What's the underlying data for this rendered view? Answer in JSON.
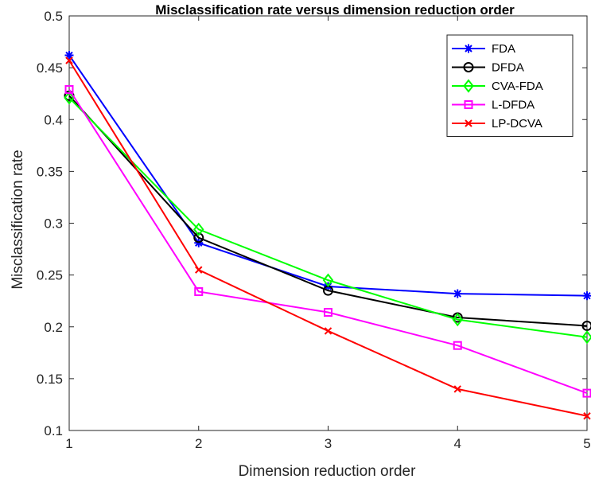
{
  "chart_data": {
    "type": "line",
    "title": "Misclassification rate versus dimension reduction order",
    "xlabel": "Dimension reduction order",
    "ylabel": "Misclassification rate",
    "x": [
      1,
      2,
      3,
      4,
      5
    ],
    "xlim": [
      1,
      5
    ],
    "ylim": [
      0.1,
      0.5
    ],
    "xticks": [
      "1",
      "2",
      "3",
      "4",
      "5"
    ],
    "yticks": [
      "0.1",
      "0.15",
      "0.2",
      "0.25",
      "0.3",
      "0.35",
      "0.4",
      "0.45",
      "0.5"
    ],
    "grid": false,
    "legend_position": "top-right",
    "series": [
      {
        "name": "FDA",
        "color": "#0000ff",
        "marker": "asterisk",
        "values": [
          0.462,
          0.281,
          0.239,
          0.232,
          0.23
        ]
      },
      {
        "name": "DFDA",
        "color": "#000000",
        "marker": "circle",
        "values": [
          0.423,
          0.286,
          0.235,
          0.209,
          0.201
        ]
      },
      {
        "name": "CVA-FDA",
        "color": "#00ff00",
        "marker": "diamond",
        "values": [
          0.421,
          0.294,
          0.245,
          0.207,
          0.19
        ]
      },
      {
        "name": "L-DFDA",
        "color": "#ff00ff",
        "marker": "square",
        "values": [
          0.429,
          0.234,
          0.214,
          0.182,
          0.136
        ]
      },
      {
        "name": "LP-DCVA",
        "color": "#ff0000",
        "marker": "x",
        "values": [
          0.457,
          0.255,
          0.196,
          0.14,
          0.114
        ]
      }
    ]
  }
}
